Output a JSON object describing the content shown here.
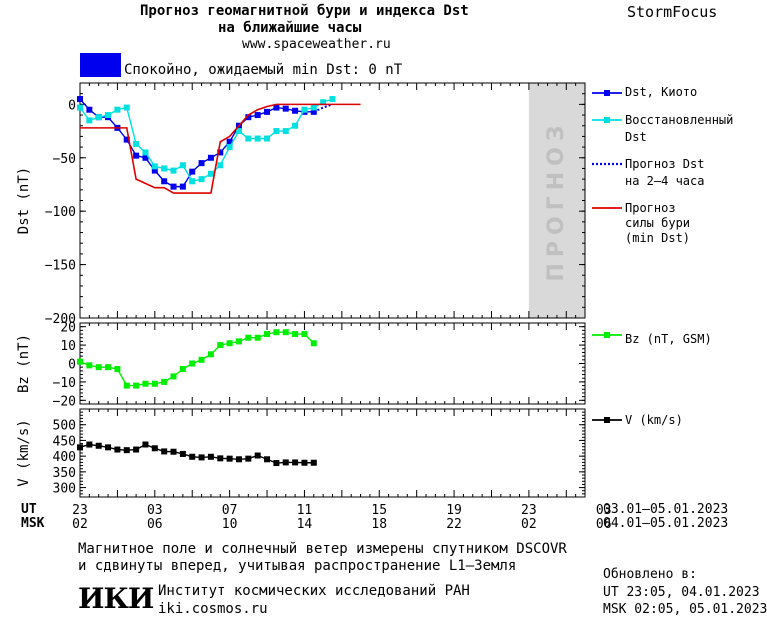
{
  "header": {
    "title_line1": "Прогноз геомагнитной бури и индекса Dst",
    "title_line2": "на ближайшие часы",
    "site": "www.spaceweather.ru",
    "brand": "StormFocus",
    "status_text": "Спокойно, ожидаемый min Dst: 0 nT",
    "status_color": "#0000ee"
  },
  "legend": {
    "dst_kyoto": "Dst, Киото",
    "restored": [
      "Восстановленный",
      "Dst"
    ],
    "forecast_dst": [
      "Прогноз Dst",
      "на 2–4 часа"
    ],
    "forecast_storm": [
      "Прогноз",
      "силы бури",
      "(min Dst)"
    ],
    "bz": "Bz (nT, GSM)",
    "v": "V (km/s)"
  },
  "footer": {
    "ut_label": "UT",
    "msk_label": "MSK",
    "ut_range": "03.01–05.01.2023",
    "msk_range": "04.01–05.01.2023",
    "note_line1": "Магнитное поле и солнечный ветер измерены спутником DSCOVR",
    "note_line2": "и сдвинуты вперед, учитывая распространение L1–Земля",
    "updated_label": "Обновлено в:",
    "updated_ut": "UT  23:05, 04.01.2023",
    "updated_msk": "MSK 02:05, 05.01.2023",
    "iki_logo": "ИКИ",
    "institute": "Институт космических исследований РАН",
    "institute_url": "iki.cosmos.ru"
  },
  "chart_data": [
    {
      "type": "line",
      "ylabel": "Dst (nT)",
      "ylim": [
        -200,
        20
      ],
      "yticks": [
        0,
        -50,
        -100,
        -150,
        -200
      ],
      "xlim": [
        0,
        54
      ],
      "forecast_label": "ПРОГНОЗ",
      "forecast_region": [
        48,
        54
      ],
      "series": [
        {
          "name": "Dst, Киото",
          "color": "#0000ee",
          "style": "line-square",
          "x": [
            0,
            1,
            2,
            3,
            4,
            5,
            6,
            7,
            8,
            9,
            10,
            11,
            12,
            13,
            14,
            15,
            16,
            17,
            18,
            19,
            20,
            21,
            22,
            23,
            24,
            25
          ],
          "y": [
            5,
            -5,
            -12,
            -12,
            -22,
            -33,
            -48,
            -50,
            -62,
            -72,
            -77,
            -77,
            -63,
            -55,
            -50,
            -45,
            -35,
            -20,
            -12,
            -10,
            -7,
            -3,
            -4,
            -6,
            -7,
            -7
          ]
        },
        {
          "name": "Восстановленный Dst",
          "color": "#00e0e0",
          "style": "line-square",
          "x": [
            0,
            1,
            2,
            3,
            4,
            5,
            6,
            7,
            8,
            9,
            10,
            11,
            12,
            13,
            14,
            15,
            16,
            17,
            18,
            19,
            20,
            21,
            22,
            23,
            24,
            25,
            26,
            27
          ],
          "y": [
            -3,
            -15,
            -12,
            -10,
            -5,
            -3,
            -37,
            -45,
            -58,
            -60,
            -62,
            -57,
            -72,
            -70,
            -65,
            -57,
            -40,
            -25,
            -32,
            -32,
            -32,
            -25,
            -25,
            -20,
            -5,
            -3,
            2,
            5
          ]
        },
        {
          "name": "Прогноз Dst на 2–4 часа",
          "color": "#0000ee",
          "style": "dotted",
          "x": [
            25,
            26,
            27
          ],
          "y": [
            -7,
            -3,
            0
          ]
        },
        {
          "name": "Прогноз силы бури (min Dst)",
          "color": "#dd0000",
          "style": "line",
          "x": [
            0,
            4,
            5,
            6,
            8,
            9,
            10,
            12,
            13,
            14,
            15,
            16,
            17,
            18,
            19,
            20,
            21,
            22,
            23,
            24,
            25,
            26,
            27,
            28,
            29,
            30
          ],
          "y": [
            -22,
            -22,
            -22,
            -70,
            -78,
            -78,
            -83,
            -83,
            -83,
            -83,
            -35,
            -30,
            -20,
            -10,
            -5,
            -2,
            0,
            0,
            0,
            0,
            0,
            0,
            0,
            0,
            0,
            0
          ]
        }
      ]
    },
    {
      "type": "line",
      "ylabel": "Bz (nT)",
      "ylim": [
        -22,
        22
      ],
      "yticks": [
        20,
        10,
        0,
        -10,
        -20
      ],
      "xlim": [
        0,
        54
      ],
      "series": [
        {
          "name": "Bz (nT, GSM)",
          "color": "#00ee00",
          "style": "line-square",
          "x": [
            0,
            1,
            2,
            3,
            4,
            5,
            6,
            7,
            8,
            9,
            10,
            11,
            12,
            13,
            14,
            15,
            16,
            17,
            18,
            19,
            20,
            21,
            22,
            23,
            24,
            25
          ],
          "y": [
            1,
            -1,
            -2,
            -2,
            -3,
            -12,
            -12,
            -11,
            -11,
            -10,
            -7,
            -3,
            0,
            2,
            5,
            10,
            11,
            12,
            14,
            14,
            16,
            17,
            17,
            16,
            16,
            11
          ]
        }
      ]
    },
    {
      "type": "line",
      "ylabel": "V (km/s)",
      "ylim": [
        270,
        550
      ],
      "yticks": [
        500,
        450,
        400,
        350,
        300
      ],
      "xlim": [
        0,
        54
      ],
      "series": [
        {
          "name": "V (km/s)",
          "color": "#000000",
          "style": "line-square",
          "x": [
            0,
            1,
            2,
            3,
            4,
            5,
            6,
            7,
            8,
            9,
            10,
            11,
            12,
            13,
            14,
            15,
            16,
            17,
            18,
            19,
            20,
            21,
            22,
            23,
            24,
            25
          ],
          "y": [
            428,
            437,
            433,
            428,
            421,
            419,
            421,
            437,
            425,
            415,
            414,
            407,
            398,
            396,
            398,
            393,
            392,
            390,
            392,
            402,
            390,
            378,
            380,
            380,
            379,
            379
          ]
        }
      ]
    }
  ],
  "x_axis": {
    "ut_ticks": [
      "23",
      "03",
      "07",
      "11",
      "15",
      "19",
      "23",
      "03"
    ],
    "msk_ticks": [
      "02",
      "06",
      "10",
      "14",
      "18",
      "22",
      "02",
      "06"
    ]
  }
}
